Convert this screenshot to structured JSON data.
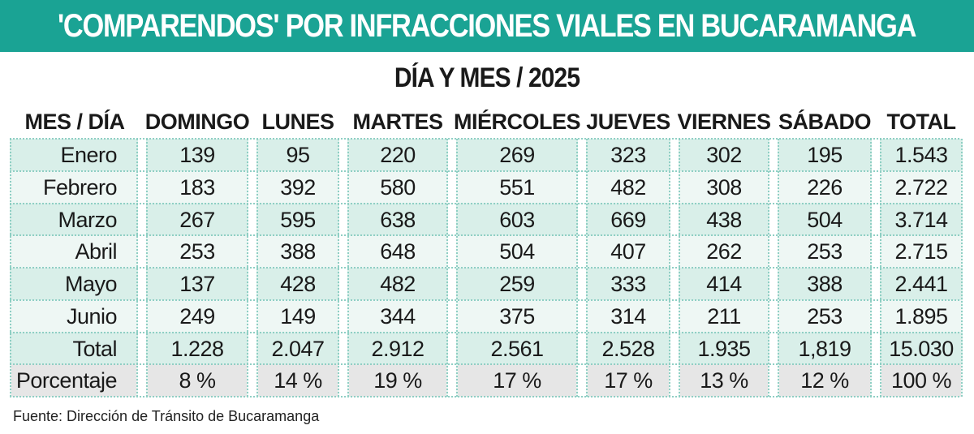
{
  "title": "'COMPARENDOS' POR INFRACCIONES VIALES EN BUCARAMANGA",
  "subtitle": "DÍA Y MES / 2025",
  "source": "Fuente: Dirección de Tránsito de Bucaramanga",
  "colors": {
    "title_bar": "#1aa394",
    "row_dark": "#d9efe9",
    "row_light": "#eef7f4",
    "percent_row": "#e6e6e6",
    "dotted_lines": "#8fcfc4"
  },
  "chart_data": {
    "type": "table",
    "title": "'COMPARENDOS' POR INFRACCIONES VIALES EN BUCARAMANGA",
    "subtitle": "DÍA Y MES / 2025",
    "corner_header": "MES / DÍA",
    "columns": [
      "DOMINGO",
      "LUNES",
      "MARTES",
      "MIÉRCOLES",
      "JUEVES",
      "VIERNES",
      "SÁBADO",
      "TOTAL"
    ],
    "rows": [
      {
        "label": "Enero",
        "values": [
          "139",
          "95",
          "220",
          "269",
          "323",
          "302",
          "195",
          "1.543"
        ]
      },
      {
        "label": "Febrero",
        "values": [
          "183",
          "392",
          "580",
          "551",
          "482",
          "308",
          "226",
          "2.722"
        ]
      },
      {
        "label": "Marzo",
        "values": [
          "267",
          "595",
          "638",
          "603",
          "669",
          "438",
          "504",
          "3.714"
        ]
      },
      {
        "label": "Abril",
        "values": [
          "253",
          "388",
          "648",
          "504",
          "407",
          "262",
          "253",
          "2.715"
        ]
      },
      {
        "label": "Mayo",
        "values": [
          "137",
          "428",
          "482",
          "259",
          "333",
          "414",
          "388",
          "2.441"
        ]
      },
      {
        "label": "Junio",
        "values": [
          "249",
          "149",
          "344",
          "375",
          "314",
          "211",
          "253",
          "1.895"
        ]
      },
      {
        "label": "Total",
        "values": [
          "1.228",
          "2.047",
          "2.912",
          "2.561",
          "2.528",
          "1.935",
          "1,819",
          "15.030"
        ]
      },
      {
        "label": "Porcentaje",
        "values": [
          "8 %",
          "14 %",
          "19 %",
          "17 %",
          "17 %",
          "13 %",
          "12 %",
          "100 %"
        ]
      }
    ]
  }
}
